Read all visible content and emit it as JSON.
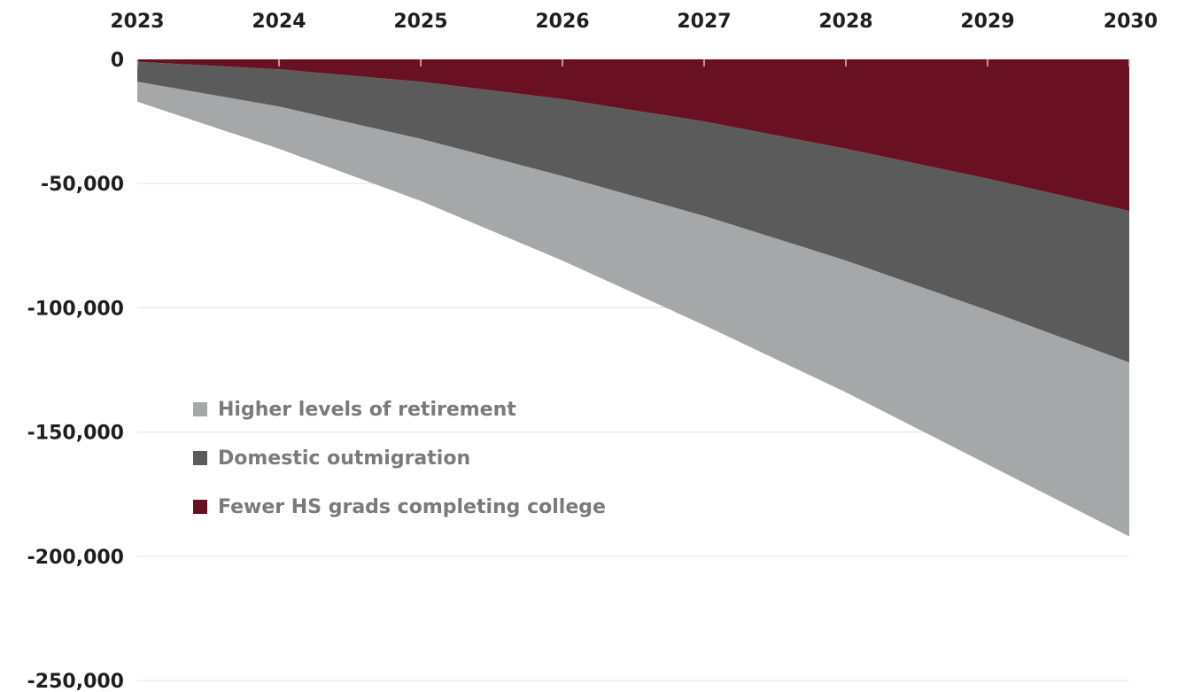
{
  "chart_data": {
    "type": "area",
    "stacked": true,
    "x": [
      2023,
      2024,
      2025,
      2026,
      2027,
      2028,
      2029,
      2030
    ],
    "x_tick_labels": [
      "2023",
      "2024",
      "2025",
      "2026",
      "2027",
      "2028",
      "2029",
      "2030"
    ],
    "x_axis_position": "top",
    "y_ticks": [
      0,
      -50000,
      -100000,
      -150000,
      -200000,
      -250000
    ],
    "y_tick_labels": [
      "0",
      "-50,000",
      "-100,000",
      "-150,000",
      "-200,000",
      "-250,000"
    ],
    "ylim": [
      -250000,
      0
    ],
    "grid": "horizontal",
    "legend_position": "center-left",
    "series": [
      {
        "name": "Fewer HS grads completing college",
        "color": "#6a1023",
        "values": [
          -1000,
          -4000,
          -9000,
          -16000,
          -25000,
          -36000,
          -48000,
          -61000
        ]
      },
      {
        "name": "Domestic outmigration",
        "color": "#5a5b5a",
        "values": [
          -8000,
          -15000,
          -23000,
          -31000,
          -38000,
          -45000,
          -53000,
          -61000
        ]
      },
      {
        "name": "Higher levels of retirement",
        "color": "#a6a7a8",
        "values": [
          -8000,
          -17000,
          -25000,
          -34000,
          -44000,
          -53000,
          -62000,
          -70000
        ]
      }
    ],
    "legend_order": [
      "Higher levels of retirement",
      "Domestic outmigration",
      "Fewer HS grads completing college"
    ]
  }
}
